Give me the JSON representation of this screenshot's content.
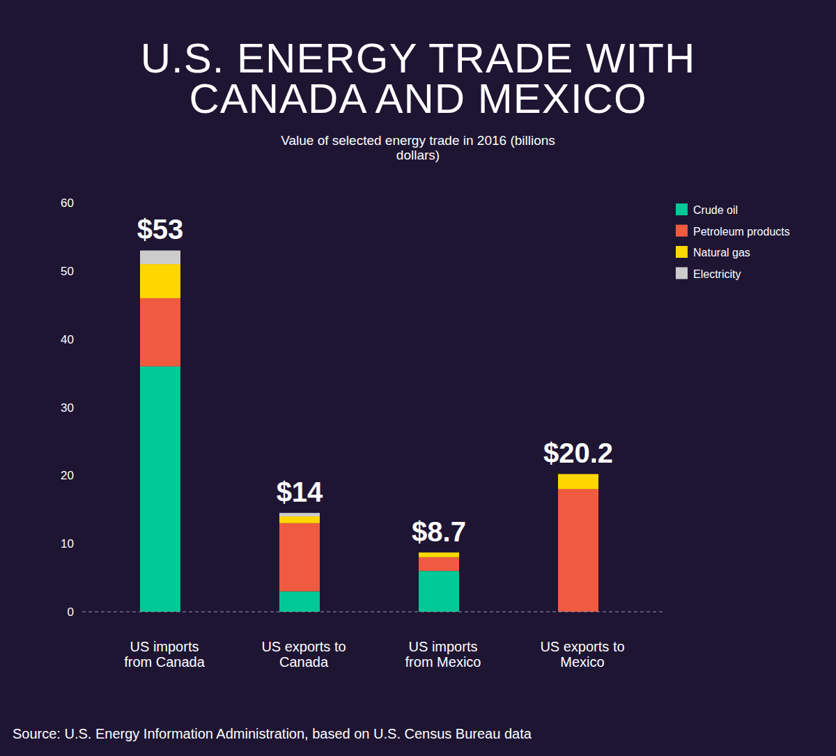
{
  "chart_data": {
    "type": "bar",
    "stacked": true,
    "title": "U.S. ENERGY TRADE WITH CANADA AND MEXICO",
    "subtitle": "Value of selected energy trade in 2016 (billions dollars)",
    "source": "Source: U.S. Energy Information Administration, based on U.S. Census Bureau data",
    "categories": [
      "US imports from Canada",
      "US exports to Canada",
      "US imports from Mexico",
      "US exports to Mexico"
    ],
    "series": [
      {
        "name": "Crude oil",
        "color": "#00c896",
        "values": [
          36,
          3,
          6,
          0
        ]
      },
      {
        "name": "Petroleum products",
        "color": "#f05a40",
        "values": [
          10,
          10,
          2,
          18
        ]
      },
      {
        "name": "Natural gas",
        "color": "#ffd700",
        "values": [
          5,
          1,
          0.7,
          2.2
        ]
      },
      {
        "name": "Electricity",
        "color": "#cccccc",
        "values": [
          2,
          0.5,
          0,
          0
        ]
      }
    ],
    "totals": [
      53,
      14,
      8.7,
      20.2
    ],
    "total_labels": [
      "$53",
      "$14",
      "$8.7",
      "$20.2"
    ],
    "ylim": [
      0,
      60
    ],
    "yticks": [
      0,
      10,
      20,
      30,
      40,
      50,
      60
    ],
    "grid": false,
    "legend": "top-right"
  }
}
